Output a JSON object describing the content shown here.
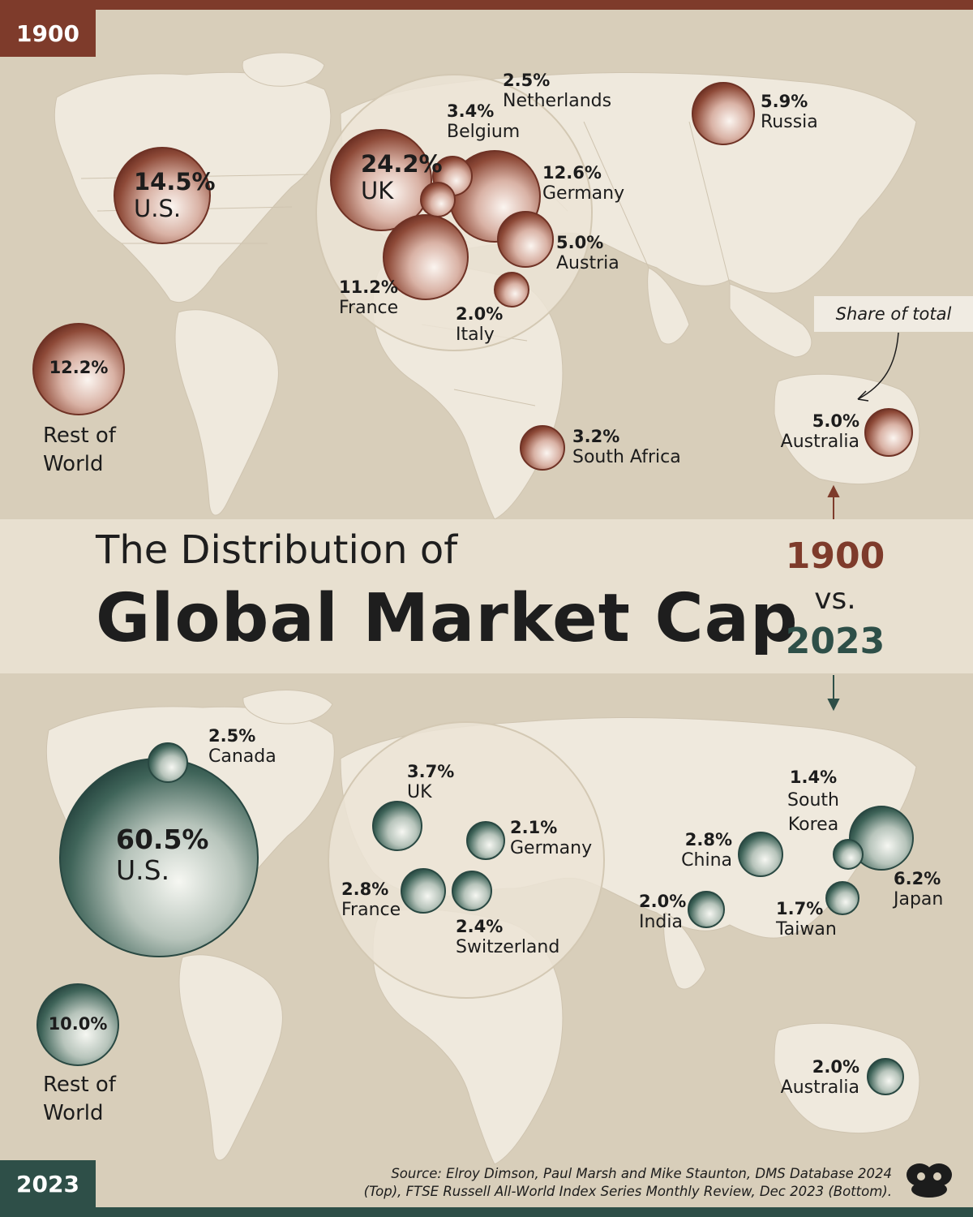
{
  "title": {
    "line1": "The Distribution of",
    "line2": "Global Market Cap"
  },
  "comparison": {
    "year_a": "1900",
    "vs": "vs.",
    "year_b": "2023"
  },
  "legend_note": "Share of total",
  "source": {
    "line1": "Source: Elroy Dimson, Paul Marsh and Mike Staunton, DMS Database 2024",
    "line2": "(Top), FTSE Russell All-World Index Series Monthly Review, Dec 2023 (Bottom)."
  },
  "colors": {
    "bubble_1900": "#7e3b2b",
    "bubble_2023": "#2e4f48",
    "land": "#efe9dd",
    "sea": "#d8ceba"
  },
  "map_1900": {
    "year": "1900",
    "markets": [
      {
        "pct": "24.2%",
        "name": "UK",
        "value": 24.2
      },
      {
        "pct": "14.5%",
        "name": "U.S.",
        "value": 14.5
      },
      {
        "pct": "12.6%",
        "name": "Germany",
        "value": 12.6
      },
      {
        "pct": "11.2%",
        "name": "France",
        "value": 11.2
      },
      {
        "pct": "5.9%",
        "name": "Russia",
        "value": 5.9
      },
      {
        "pct": "5.0%",
        "name": "Austria",
        "value": 5.0
      },
      {
        "pct": "5.0%",
        "name": "Australia",
        "value": 5.0
      },
      {
        "pct": "3.4%",
        "name": "Belgium",
        "value": 3.4
      },
      {
        "pct": "3.2%",
        "name": "South Africa",
        "value": 3.2
      },
      {
        "pct": "2.5%",
        "name": "Netherlands",
        "value": 2.5
      },
      {
        "pct": "2.0%",
        "name": "Italy",
        "value": 2.0
      },
      {
        "pct": "12.2%",
        "name": "Rest of World",
        "value": 12.2
      }
    ]
  },
  "map_2023": {
    "year": "2023",
    "markets": [
      {
        "pct": "60.5%",
        "name": "U.S.",
        "value": 60.5
      },
      {
        "pct": "6.2%",
        "name": "Japan",
        "value": 6.2
      },
      {
        "pct": "3.7%",
        "name": "UK",
        "value": 3.7
      },
      {
        "pct": "2.8%",
        "name": "China",
        "value": 2.8
      },
      {
        "pct": "2.8%",
        "name": "France",
        "value": 2.8
      },
      {
        "pct": "2.5%",
        "name": "Canada",
        "value": 2.5
      },
      {
        "pct": "2.4%",
        "name": "Switzerland",
        "value": 2.4
      },
      {
        "pct": "2.1%",
        "name": "Germany",
        "value": 2.1
      },
      {
        "pct": "2.0%",
        "name": "India",
        "value": 2.0
      },
      {
        "pct": "2.0%",
        "name": "Australia",
        "value": 2.0
      },
      {
        "pct": "1.7%",
        "name": "Taiwan",
        "value": 1.7
      },
      {
        "pct": "1.4%",
        "name": "South Korea",
        "value": 1.4
      },
      {
        "pct": "10.0%",
        "name": "Rest of World",
        "value": 10.0
      }
    ]
  }
}
